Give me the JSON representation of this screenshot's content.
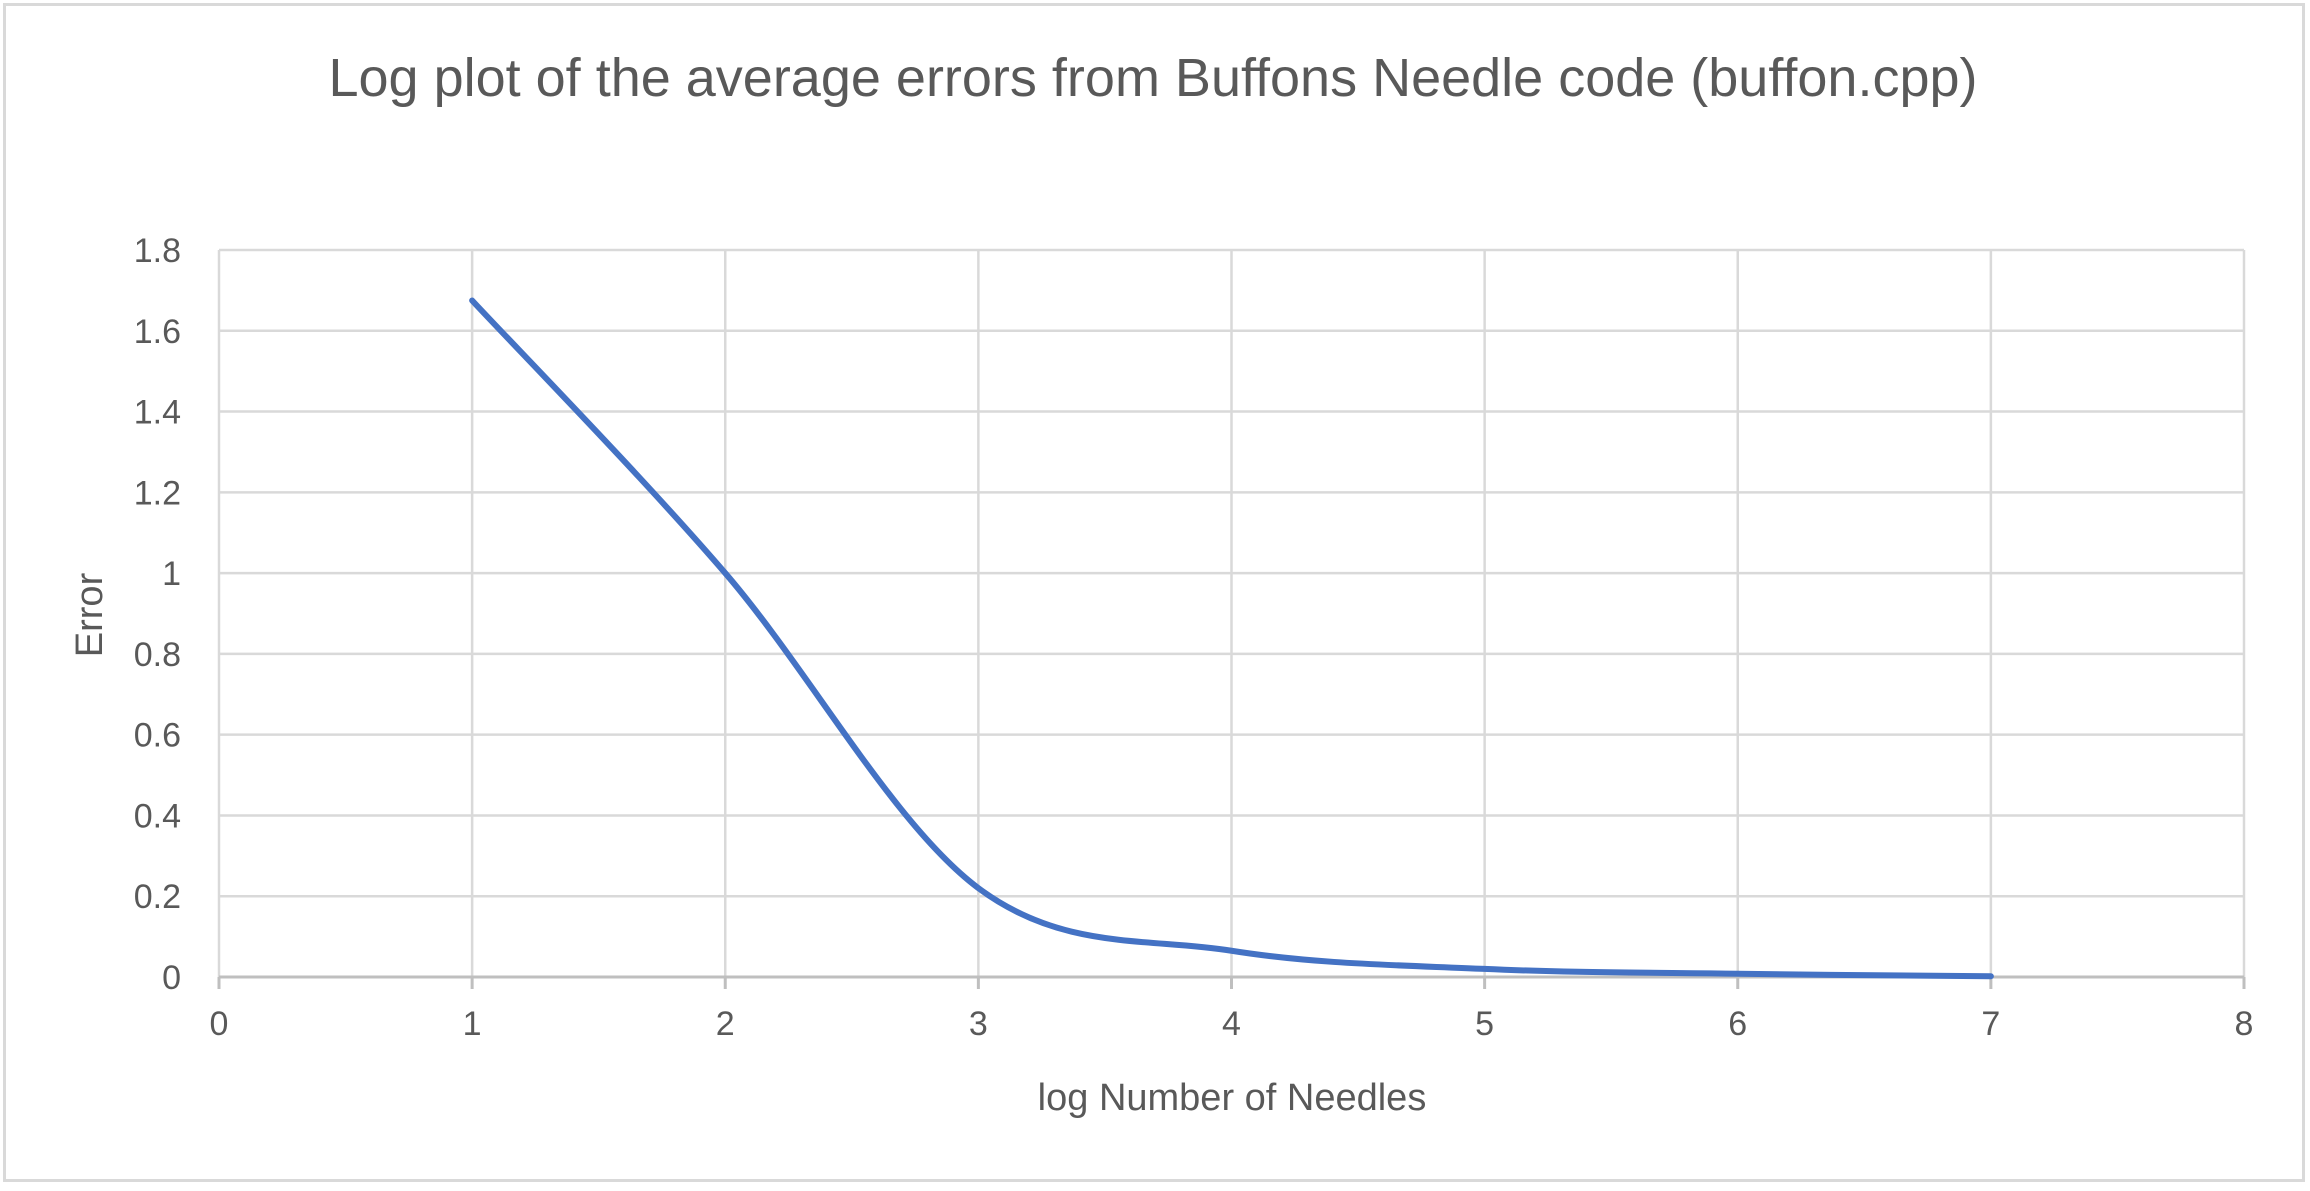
{
  "chart_data": {
    "type": "line",
    "title": "Log plot of the average errors from Buffons Needle code (buffon.cpp)",
    "xlabel": "log Number of Needles",
    "ylabel": "Error",
    "xlim": [
      0,
      8
    ],
    "ylim": [
      0,
      1.8
    ],
    "x_ticks": [
      "0",
      "1",
      "2",
      "3",
      "4",
      "5",
      "6",
      "7",
      "8"
    ],
    "y_ticks": [
      "0",
      "0.2",
      "0.4",
      "0.6",
      "0.8",
      "1",
      "1.2",
      "1.4",
      "1.6",
      "1.8"
    ],
    "grid": true,
    "smooth": true,
    "series": [
      {
        "color": "#4472c4",
        "x": [
          1,
          2,
          3,
          4,
          5,
          6,
          7
        ],
        "y": [
          1.675,
          1.0,
          0.22,
          0.065,
          0.02,
          0.008,
          0.002
        ]
      }
    ]
  }
}
